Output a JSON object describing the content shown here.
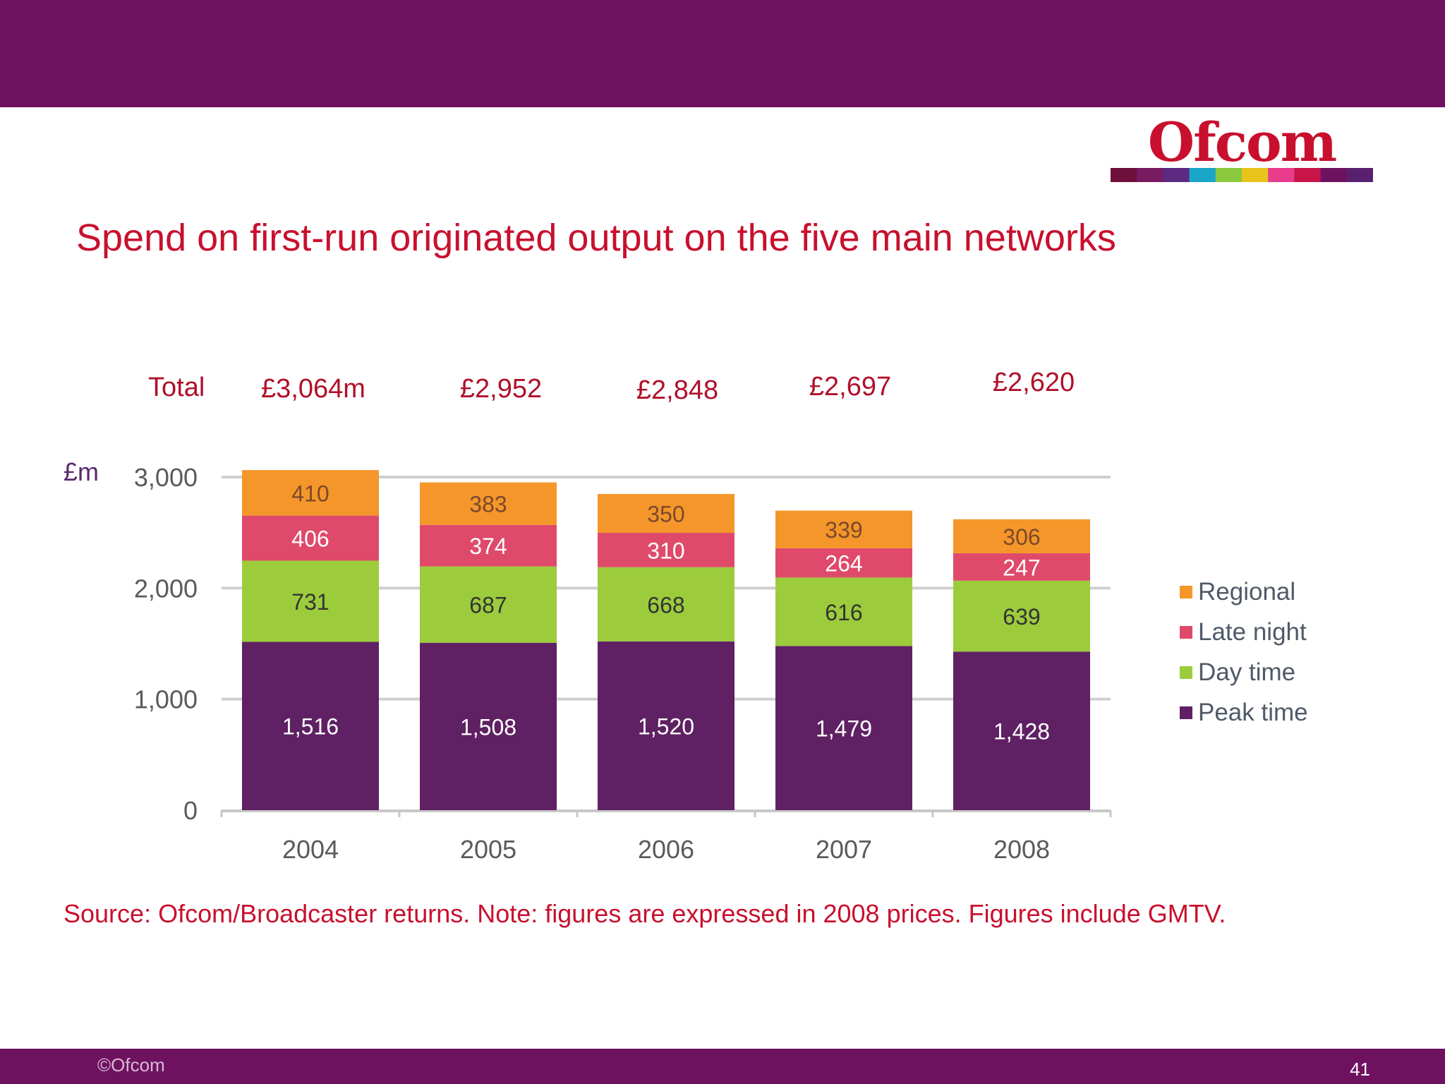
{
  "slide": {
    "title": "Spend on first-run originated output on the five main networks",
    "logo_text": "Ofcom",
    "total_label": "Total",
    "totals": [
      "£3,064m",
      "£2,952",
      "£2,848",
      "£2,697",
      "£2,620"
    ],
    "unit_label": "£m",
    "source": "Source: Ofcom/Broadcaster returns. Note: figures are expressed in 2008 prices. Figures include GMTV.",
    "copyright": "©Ofcom",
    "page_number": "41"
  },
  "colors": {
    "band": "#6e1260",
    "title": "#c8102e",
    "peak_time": "#5f2163",
    "day_time": "#9ccc3c",
    "late_night": "#e04a6a",
    "regional": "#f5962a",
    "logo_stripe": [
      "#6e0f3c",
      "#7a1a60",
      "#5c2a80",
      "#1aa6c8",
      "#8cc83c",
      "#e8c41a",
      "#e83c8c",
      "#c81448",
      "#6e1260",
      "#5a2070"
    ]
  },
  "chart_data": {
    "type": "bar",
    "stacked": true,
    "categories": [
      "2004",
      "2005",
      "2006",
      "2007",
      "2008"
    ],
    "series": [
      {
        "name": "Peak time",
        "color": "#5f2163",
        "values": [
          1516,
          1508,
          1520,
          1479,
          1428
        ],
        "labels": [
          "1,516",
          "1,508",
          "1,520",
          "1,479",
          "1,428"
        ]
      },
      {
        "name": "Day time",
        "color": "#9ccc3c",
        "values": [
          731,
          687,
          668,
          616,
          639
        ],
        "labels": [
          "731",
          "687",
          "668",
          "616",
          "639"
        ]
      },
      {
        "name": "Late night",
        "color": "#e04a6a",
        "values": [
          406,
          374,
          310,
          264,
          247
        ],
        "labels": [
          "406",
          "374",
          "310",
          "264",
          "247"
        ]
      },
      {
        "name": "Regional",
        "color": "#f5962a",
        "values": [
          410,
          383,
          350,
          339,
          306
        ],
        "labels": [
          "410",
          "383",
          "350",
          "339",
          "306"
        ]
      }
    ],
    "ylim": [
      0,
      3000
    ],
    "yticks": [
      0,
      1000,
      2000,
      3000
    ],
    "ytick_labels": [
      "0",
      "1,000",
      "2,000",
      "3,000"
    ],
    "grid": true,
    "legend_position": "right",
    "legend_order": [
      "Regional",
      "Late night",
      "Day time",
      "Peak time"
    ]
  }
}
